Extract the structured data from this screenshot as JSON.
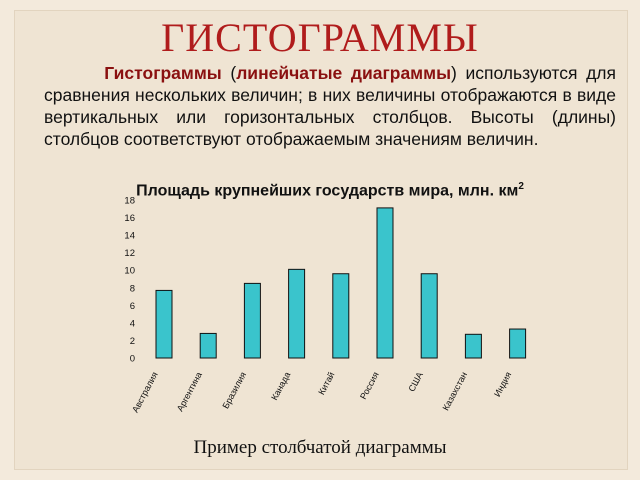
{
  "slide": {
    "title": "ГИСТОГРАММЫ",
    "para_hl": "Гистограммы",
    "para_paren_open": " (",
    "para_hl2": "линейчатые диаграммы",
    "para_rest": ") используются для сравнения нескольких величин; в них величины отображаются в виде вертикальных или горизонтальных столбцов. Высоты (длины) столбцов соответствуют отображаемым значениям величин.",
    "caption": "Пример столбчатой диаграммы"
  },
  "colors": {
    "title": "#b01c1c",
    "highlight": "#8a1010",
    "bar_fill": "#3ac4cc",
    "bar_stroke": "#111111"
  },
  "chart_data": {
    "type": "bar",
    "title": "Площадь крупнейших государств мира, млн. км",
    "title_sup": "2",
    "categories": [
      "Австралия",
      "Аргентина",
      "Бразилия",
      "Канада",
      "Китай",
      "Россия",
      "США",
      "Казахстан",
      "Индия"
    ],
    "values": [
      7.7,
      2.8,
      8.5,
      10.1,
      9.6,
      17.1,
      9.6,
      2.7,
      3.3
    ],
    "ylim": [
      0,
      18
    ],
    "yticks": [
      "0",
      "2",
      "4",
      "6",
      "8",
      "10",
      "12",
      "14",
      "16",
      "18"
    ],
    "xlabel": "",
    "ylabel": "",
    "grid": false
  }
}
